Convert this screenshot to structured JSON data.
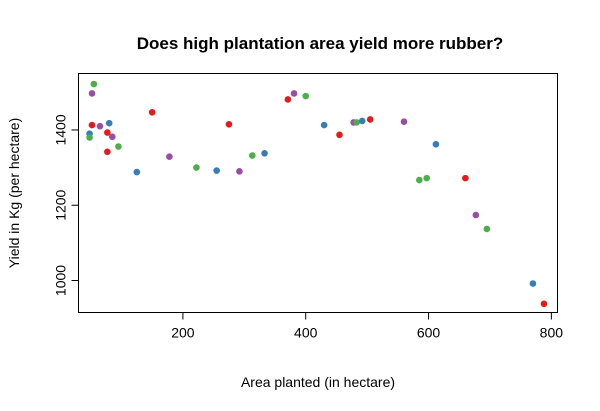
{
  "chart_data": {
    "type": "scatter",
    "title": "Does high plantation area yield more rubber?",
    "xlabel": "Area planted (in hectare)",
    "ylabel": "Yield in Kg (per hectare)",
    "xlim": [
      30,
      810
    ],
    "ylim": [
      915,
      1550
    ],
    "xticks": [
      200,
      400,
      600,
      800
    ],
    "yticks": [
      1000,
      1200,
      1400
    ],
    "grid": false,
    "colors": {
      "red": "#E41A1C",
      "blue": "#377EB8",
      "green": "#4DAF4A",
      "purple": "#984EA3"
    },
    "points": [
      {
        "x": 48,
        "y": 1390,
        "c": "blue"
      },
      {
        "x": 48,
        "y": 1380,
        "c": "green"
      },
      {
        "x": 52,
        "y": 1413,
        "c": "red"
      },
      {
        "x": 52,
        "y": 1497,
        "c": "purple"
      },
      {
        "x": 55,
        "y": 1522,
        "c": "green"
      },
      {
        "x": 65,
        "y": 1410,
        "c": "purple"
      },
      {
        "x": 77,
        "y": 1342,
        "c": "red"
      },
      {
        "x": 77,
        "y": 1393,
        "c": "red"
      },
      {
        "x": 80,
        "y": 1418,
        "c": "blue"
      },
      {
        "x": 85,
        "y": 1382,
        "c": "purple"
      },
      {
        "x": 95,
        "y": 1356,
        "c": "green"
      },
      {
        "x": 125,
        "y": 1288,
        "c": "blue"
      },
      {
        "x": 150,
        "y": 1447,
        "c": "red"
      },
      {
        "x": 178,
        "y": 1329,
        "c": "purple"
      },
      {
        "x": 222,
        "y": 1300,
        "c": "green"
      },
      {
        "x": 255,
        "y": 1292,
        "c": "blue"
      },
      {
        "x": 275,
        "y": 1415,
        "c": "red"
      },
      {
        "x": 292,
        "y": 1290,
        "c": "purple"
      },
      {
        "x": 313,
        "y": 1332,
        "c": "green"
      },
      {
        "x": 333,
        "y": 1338,
        "c": "blue"
      },
      {
        "x": 371,
        "y": 1481,
        "c": "red"
      },
      {
        "x": 381,
        "y": 1497,
        "c": "purple"
      },
      {
        "x": 400,
        "y": 1490,
        "c": "green"
      },
      {
        "x": 430,
        "y": 1413,
        "c": "blue"
      },
      {
        "x": 455,
        "y": 1387,
        "c": "red"
      },
      {
        "x": 478,
        "y": 1420,
        "c": "purple"
      },
      {
        "x": 483,
        "y": 1420,
        "c": "green"
      },
      {
        "x": 492,
        "y": 1424,
        "c": "blue"
      },
      {
        "x": 505,
        "y": 1428,
        "c": "red"
      },
      {
        "x": 560,
        "y": 1422,
        "c": "purple"
      },
      {
        "x": 585,
        "y": 1267,
        "c": "green"
      },
      {
        "x": 597,
        "y": 1272,
        "c": "green"
      },
      {
        "x": 612,
        "y": 1362,
        "c": "blue"
      },
      {
        "x": 660,
        "y": 1272,
        "c": "red"
      },
      {
        "x": 677,
        "y": 1174,
        "c": "purple"
      },
      {
        "x": 695,
        "y": 1137,
        "c": "green"
      },
      {
        "x": 770,
        "y": 992,
        "c": "blue"
      },
      {
        "x": 788,
        "y": 938,
        "c": "red"
      }
    ]
  }
}
